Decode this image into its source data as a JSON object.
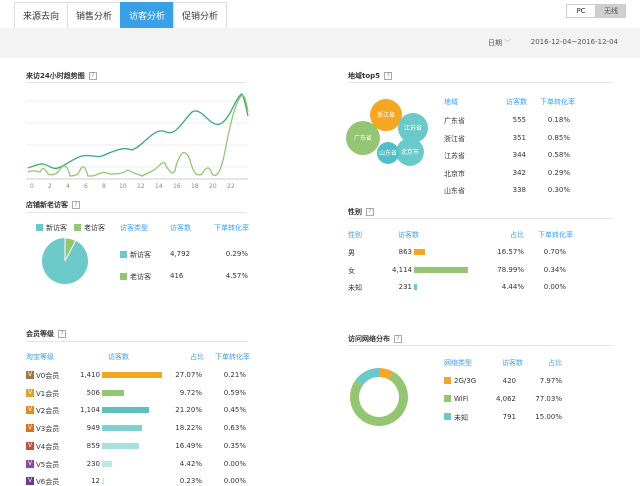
{
  "tabs": [
    "来源去向",
    "销售分析",
    "访客分析",
    "促销分析"
  ],
  "active_tab": 2,
  "toggle": {
    "pc": "PC",
    "wireless": "无线"
  },
  "date": {
    "label": "日期",
    "value": "2016-12-04~2016-12-04"
  },
  "trend": {
    "title": "来访24小时趋势图",
    "x_ticks": [
      "0",
      "2",
      "4",
      "6",
      "8",
      "10",
      "12",
      "14",
      "16",
      "18",
      "20",
      "22"
    ]
  },
  "new_old": {
    "title": "店铺新老访客",
    "legend": [
      {
        "label": "新访客",
        "color": "#6cc9c9"
      },
      {
        "label": "老访客",
        "color": "#93c572"
      }
    ],
    "headers": [
      "访客类型",
      "访客数",
      "下单转化率"
    ],
    "rows": [
      {
        "name": "新访客",
        "count": "4,792",
        "rate": "0.29%",
        "color": "#6cc9c9"
      },
      {
        "name": "老访客",
        "count": "416",
        "rate": "4.57%",
        "color": "#93c572"
      }
    ]
  },
  "region": {
    "title": "地域top5",
    "headers": [
      "地域",
      "访客数",
      "下单转化率"
    ],
    "rows": [
      {
        "name": "广东省",
        "count": "555",
        "rate": "0.18%"
      },
      {
        "name": "浙江省",
        "count": "351",
        "rate": "0.85%"
      },
      {
        "name": "江苏省",
        "count": "344",
        "rate": "0.58%"
      },
      {
        "name": "北京市",
        "count": "342",
        "rate": "0.29%"
      },
      {
        "name": "山东省",
        "count": "338",
        "rate": "0.30%"
      }
    ],
    "bubbles": [
      "浙江省",
      "广东省",
      "江苏省",
      "北京市",
      "山东省"
    ]
  },
  "gender": {
    "title": "性别",
    "headers": [
      "性别",
      "访客数",
      "占比",
      "下单转化率"
    ],
    "rows": [
      {
        "name": "男",
        "count": "863",
        "share": "16.57%",
        "rate": "0.70%",
        "color": "#f5a623",
        "fraction": 0.1657
      },
      {
        "name": "女",
        "count": "4,114",
        "share": "78.99%",
        "rate": "0.34%",
        "color": "#93c572",
        "fraction": 0.7899
      },
      {
        "name": "未知",
        "count": "231",
        "share": "4.44%",
        "rate": "0.00%",
        "color": "#6cc9c9",
        "fraction": 0.0444
      }
    ]
  },
  "member": {
    "title": "会员等级",
    "headers": [
      "淘宝等级",
      "访客数",
      "占比",
      "下单转化率"
    ],
    "rows": [
      {
        "name": "V0会员",
        "badge": "V",
        "badge_color": "#a07a4a",
        "count": "1,410",
        "share": "27.07%",
        "rate": "0.21%",
        "color": "#f5a623",
        "fraction": 0.2707
      },
      {
        "name": "V1会员",
        "badge": "V",
        "badge_color": "#e0a030",
        "count": "506",
        "share": "9.72%",
        "rate": "0.59%",
        "color": "#93c572",
        "fraction": 0.0972
      },
      {
        "name": "V2会员",
        "badge": "V",
        "badge_color": "#e08a20",
        "count": "1,104",
        "share": "21.20%",
        "rate": "0.45%",
        "color": "#5fbfbf",
        "fraction": 0.212
      },
      {
        "name": "V3会员",
        "badge": "V",
        "badge_color": "#e07020",
        "count": "949",
        "share": "18.22%",
        "rate": "0.63%",
        "color": "#7fd0d0",
        "fraction": 0.1822
      },
      {
        "name": "V4会员",
        "badge": "V",
        "badge_color": "#c05040",
        "count": "859",
        "share": "16.49%",
        "rate": "0.35%",
        "color": "#a8e0e0",
        "fraction": 0.1649
      },
      {
        "name": "V5会员",
        "badge": "V",
        "badge_color": "#8a4aa0",
        "count": "230",
        "share": "4.42%",
        "rate": "0.00%",
        "color": "#bde8e8",
        "fraction": 0.0442
      },
      {
        "name": "V6会员",
        "badge": "V",
        "badge_color": "#6a3a90",
        "count": "12",
        "share": "0.23%",
        "rate": "0.00%",
        "color": "#d0eeee",
        "fraction": 0.0023
      }
    ]
  },
  "network": {
    "title": "访问网络分布",
    "headers": [
      "网络类型",
      "访客数",
      "占比"
    ],
    "rows": [
      {
        "name": "2G/3G",
        "count": "420",
        "share": "7.97%",
        "color": "#f5a623"
      },
      {
        "name": "WiFi",
        "count": "4,062",
        "share": "77.03%",
        "color": "#93c572"
      },
      {
        "name": "未知",
        "count": "791",
        "share": "15.00%",
        "color": "#6cc9c9"
      }
    ]
  },
  "colors": {
    "accent": "#3aa0e6",
    "teal": "#6cc9c9",
    "green": "#93c572",
    "orange": "#f5a623"
  }
}
